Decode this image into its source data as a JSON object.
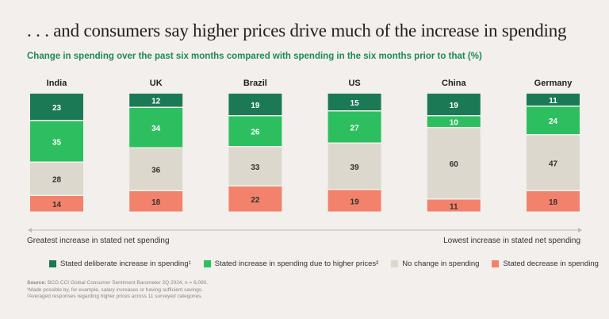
{
  "title": ". . . and consumers say higher prices drive much of the increase in spending",
  "chart_data": {
    "type": "bar",
    "stacked": true,
    "orientation": "vertical",
    "subtitle": "Change in spending over the past six months compared with spending in the six months prior to that (%)",
    "categories": [
      "India",
      "UK",
      "Brazil",
      "US",
      "China",
      "Germany"
    ],
    "series": [
      {
        "name": "Stated deliberate increase in spending¹",
        "color": "#1b7a55",
        "values": [
          23,
          12,
          19,
          15,
          19,
          11
        ]
      },
      {
        "name": "Stated increase in spending due to higher prices²",
        "color": "#2dbf5f",
        "values": [
          35,
          34,
          26,
          27,
          10,
          24
        ]
      },
      {
        "name": "No change in spending",
        "color": "#ddd8cd",
        "values": [
          28,
          36,
          33,
          39,
          60,
          47
        ]
      },
      {
        "name": "Stated decrease in spending",
        "color": "#f2826b",
        "values": [
          14,
          18,
          22,
          19,
          11,
          18
        ]
      }
    ],
    "axis_left_label": "Greatest increase in stated net spending",
    "axis_right_label": "Lowest increase in stated net spending",
    "legend_position": "bottom"
  },
  "notes": {
    "source_label": "Source:",
    "source": "BCG CCI Global Consumer Sentiment Barometer 2Q 2024, n = 6,090.",
    "note1": "¹Made possible by, for example, salary increases or having sufficient savings.",
    "note2": "²Averaged responses regarding higher prices across 11 surveyed categories."
  }
}
